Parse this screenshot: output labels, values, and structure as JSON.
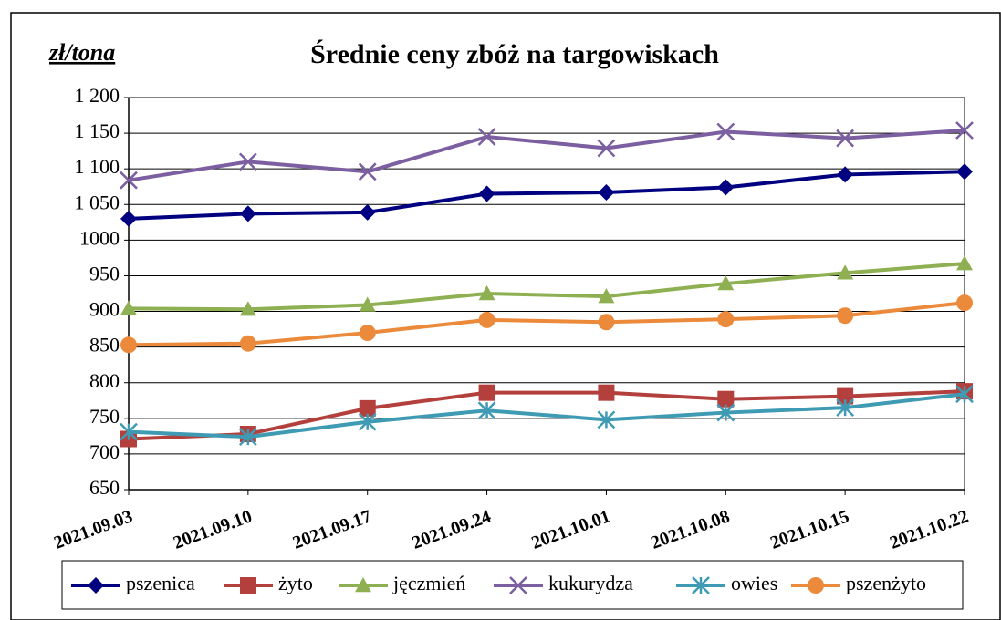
{
  "chart_data": {
    "type": "line",
    "title": "Średnie ceny zbóż na targowiskach",
    "y_label": "zł/tona",
    "categories": [
      "2021.09.03",
      "2021.09.10",
      "2021.09.17",
      "2021.09.24",
      "2021.10.01",
      "2021.10.08",
      "2021.10.15",
      "2021.10.22"
    ],
    "series": [
      {
        "name": "pszenica",
        "color": "#000080",
        "marker": "diamond",
        "values": [
          1030,
          1037,
          1039,
          1065,
          1067,
          1074,
          1092,
          1096
        ]
      },
      {
        "name": "żyto",
        "color": "#b3403d",
        "marker": "square",
        "values": [
          721,
          728,
          764,
          786,
          786,
          777,
          781,
          788
        ]
      },
      {
        "name": "jęczmień",
        "color": "#8fb052",
        "marker": "triangle",
        "values": [
          904,
          903,
          909,
          925,
          921,
          939,
          954,
          967
        ]
      },
      {
        "name": "kukurydza",
        "color": "#7b5fa0",
        "marker": "cross",
        "values": [
          1084,
          1110,
          1096,
          1145,
          1129,
          1152,
          1143,
          1154
        ]
      },
      {
        "name": "owies",
        "color": "#3f9bb3",
        "marker": "star",
        "values": [
          731,
          724,
          745,
          761,
          748,
          758,
          765,
          784
        ]
      },
      {
        "name": "pszenżyto",
        "color": "#ec8a3c",
        "marker": "circle",
        "values": [
          853,
          855,
          870,
          888,
          885,
          889,
          894,
          912
        ]
      }
    ],
    "ylim": [
      650,
      1200
    ],
    "yticks": [
      650,
      700,
      750,
      800,
      850,
      900,
      950,
      1000,
      {
        "value": 1050,
        "label": "1 050"
      },
      {
        "value": 1100,
        "label": "1 100"
      },
      {
        "value": 1150,
        "label": "1 150"
      },
      {
        "value": 1200,
        "label": "1 200"
      }
    ],
    "grid": true,
    "legend": "bottom"
  }
}
